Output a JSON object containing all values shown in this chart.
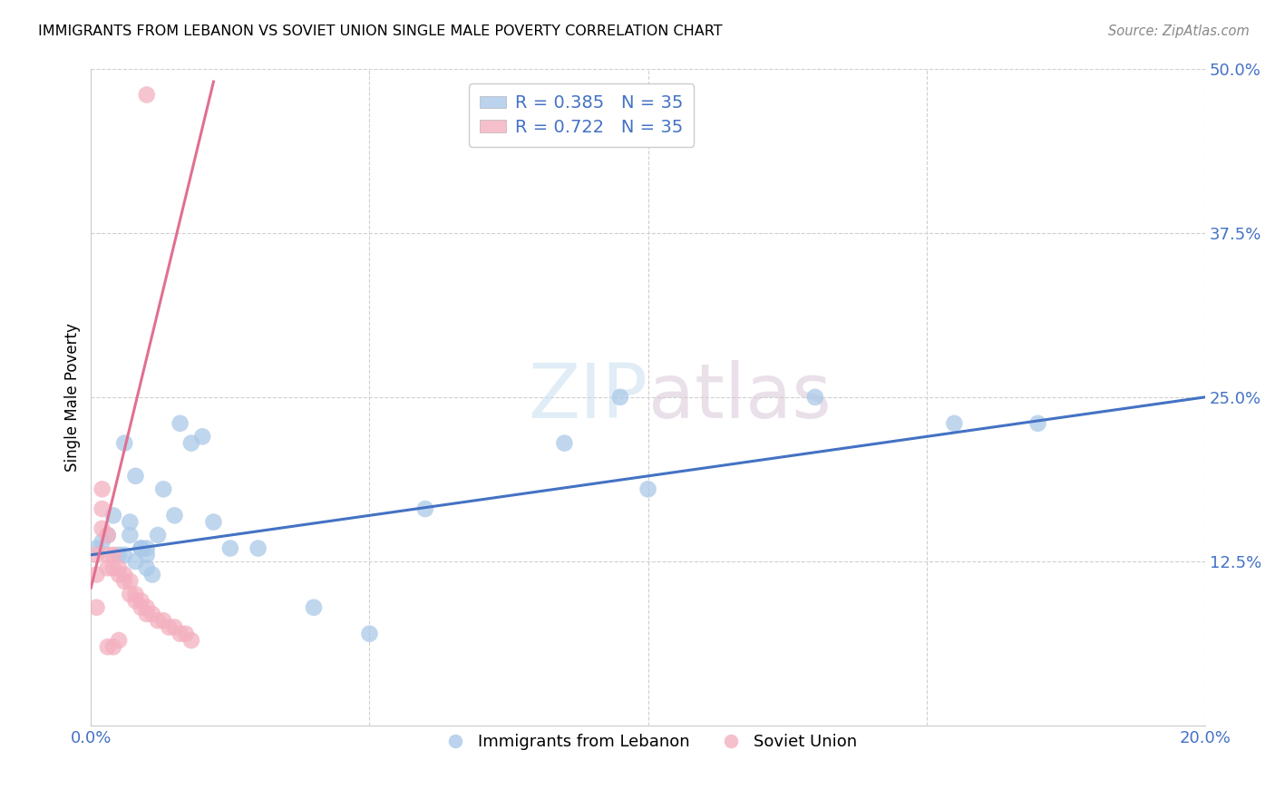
{
  "title": "IMMIGRANTS FROM LEBANON VS SOVIET UNION SINGLE MALE POVERTY CORRELATION CHART",
  "source": "Source: ZipAtlas.com",
  "ylabel": "Single Male Poverty",
  "watermark": "ZIPatlas",
  "xlim": [
    0.0,
    0.2
  ],
  "ylim": [
    0.0,
    0.5
  ],
  "xticks": [
    0.0,
    0.05,
    0.1,
    0.15,
    0.2
  ],
  "xtick_labels": [
    "0.0%",
    "",
    "",
    "",
    "20.0%"
  ],
  "ytick_labels": [
    "",
    "12.5%",
    "25.0%",
    "37.5%",
    "50.0%"
  ],
  "yticks": [
    0.0,
    0.125,
    0.25,
    0.375,
    0.5
  ],
  "lebanon_R": 0.385,
  "lebanon_N": 35,
  "soviet_R": 0.722,
  "soviet_N": 35,
  "lebanon_color": "#aac9e8",
  "soviet_color": "#f4b0c0",
  "lebanon_line_color": "#4472c4",
  "soviet_line_color": "#e07090",
  "leb_line_x0": 0.0,
  "leb_line_y0": 0.13,
  "leb_line_x1": 0.2,
  "leb_line_y1": 0.25,
  "sov_line_x0": 0.0,
  "sov_line_y0": 0.105,
  "sov_line_x1": 0.022,
  "sov_line_y1": 0.49,
  "lebanon_x": [
    0.001,
    0.002,
    0.003,
    0.004,
    0.005,
    0.006,
    0.007,
    0.008,
    0.009,
    0.01,
    0.01,
    0.011,
    0.012,
    0.013,
    0.015,
    0.018,
    0.02,
    0.022,
    0.025,
    0.03,
    0.04,
    0.008,
    0.006,
    0.007,
    0.009,
    0.016,
    0.085,
    0.1,
    0.13,
    0.155,
    0.17,
    0.095,
    0.06,
    0.05,
    0.01
  ],
  "lebanon_y": [
    0.135,
    0.14,
    0.145,
    0.16,
    0.13,
    0.13,
    0.145,
    0.125,
    0.135,
    0.135,
    0.12,
    0.115,
    0.145,
    0.18,
    0.16,
    0.215,
    0.22,
    0.155,
    0.135,
    0.135,
    0.09,
    0.19,
    0.215,
    0.155,
    0.135,
    0.23,
    0.215,
    0.18,
    0.25,
    0.23,
    0.23,
    0.25,
    0.165,
    0.07,
    0.13
  ],
  "soviet_x": [
    0.001,
    0.001,
    0.001,
    0.002,
    0.002,
    0.002,
    0.003,
    0.003,
    0.003,
    0.004,
    0.004,
    0.005,
    0.005,
    0.006,
    0.006,
    0.007,
    0.007,
    0.008,
    0.008,
    0.009,
    0.009,
    0.01,
    0.01,
    0.011,
    0.012,
    0.013,
    0.014,
    0.015,
    0.016,
    0.017,
    0.018,
    0.003,
    0.004,
    0.005,
    0.01
  ],
  "soviet_y": [
    0.115,
    0.13,
    0.09,
    0.18,
    0.165,
    0.15,
    0.145,
    0.13,
    0.12,
    0.13,
    0.12,
    0.12,
    0.115,
    0.115,
    0.11,
    0.11,
    0.1,
    0.1,
    0.095,
    0.095,
    0.09,
    0.09,
    0.085,
    0.085,
    0.08,
    0.08,
    0.075,
    0.075,
    0.07,
    0.07,
    0.065,
    0.06,
    0.06,
    0.065,
    0.48
  ],
  "background_color": "#ffffff",
  "grid_color": "#d0d0d0"
}
